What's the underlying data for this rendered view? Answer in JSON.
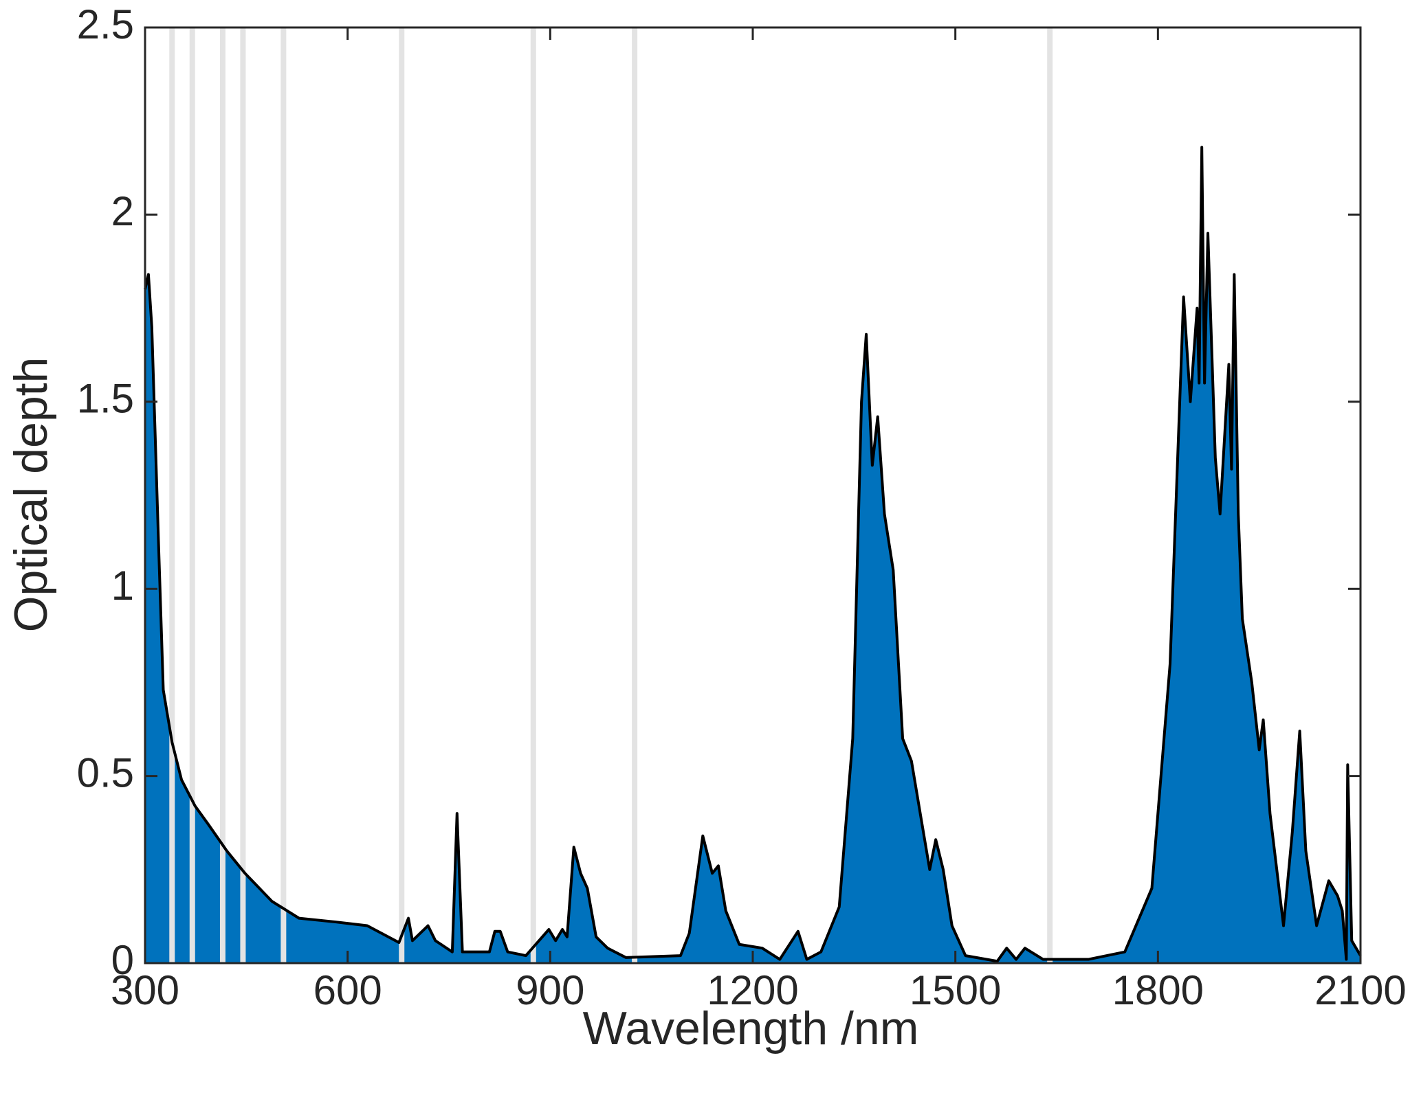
{
  "chart_data": {
    "type": "area",
    "xlabel": "Wavelength /nm",
    "ylabel": "Optical depth",
    "x": [
      300,
      305,
      310,
      320,
      327,
      340,
      354,
      374,
      394,
      421,
      448,
      488,
      528,
      582,
      629,
      676,
      690,
      696,
      719,
      730,
      755,
      762,
      770,
      810,
      818,
      826,
      837,
      864,
      898,
      908,
      918,
      925,
      935,
      945,
      955,
      968,
      985,
      1012,
      1093,
      1106,
      1126,
      1140,
      1149,
      1160,
      1180,
      1214,
      1240,
      1267,
      1280,
      1301,
      1328,
      1348,
      1361,
      1368,
      1377,
      1385,
      1395,
      1408,
      1422,
      1435,
      1448,
      1462,
      1471,
      1482,
      1495,
      1515,
      1562,
      1576,
      1590,
      1603,
      1630,
      1697,
      1751,
      1791,
      1818,
      1838,
      1848,
      1858,
      1861,
      1865,
      1869,
      1874,
      1885,
      1892,
      1905,
      1909,
      1913,
      1919,
      1925,
      1939,
      1950,
      1956,
      1966,
      1986,
      1999,
      2010,
      2019,
      2035,
      2053,
      2066,
      2073,
      2079,
      2081,
      2087,
      2100
    ],
    "values": [
      1.8,
      1.84,
      1.7,
      1.12,
      0.73,
      0.59,
      0.49,
      0.42,
      0.37,
      0.3,
      0.24,
      0.165,
      0.12,
      0.11,
      0.1,
      0.055,
      0.12,
      0.06,
      0.1,
      0.06,
      0.03,
      0.4,
      0.03,
      0.03,
      0.085,
      0.085,
      0.03,
      0.02,
      0.09,
      0.06,
      0.09,
      0.07,
      0.31,
      0.24,
      0.2,
      0.07,
      0.04,
      0.015,
      0.02,
      0.08,
      0.34,
      0.24,
      0.26,
      0.14,
      0.05,
      0.04,
      0.01,
      0.085,
      0.01,
      0.03,
      0.15,
      0.6,
      1.5,
      1.68,
      1.33,
      1.46,
      1.2,
      1.05,
      0.6,
      0.54,
      0.4,
      0.25,
      0.33,
      0.25,
      0.1,
      0.02,
      0.005,
      0.04,
      0.01,
      0.04,
      0.01,
      0.01,
      0.03,
      0.2,
      0.8,
      1.78,
      1.5,
      1.75,
      1.55,
      2.18,
      1.55,
      1.95,
      1.35,
      1.2,
      1.6,
      1.32,
      1.84,
      1.2,
      0.92,
      0.75,
      0.57,
      0.65,
      0.4,
      0.1,
      0.35,
      0.62,
      0.3,
      0.1,
      0.22,
      0.18,
      0.14,
      0.01,
      0.53,
      0.06,
      0.02
    ],
    "color": "#0072bd",
    "line_color": "#000000",
    "reference_lines": [
      340,
      370,
      415,
      445,
      505,
      680,
      875,
      1025,
      1640
    ],
    "reference_color": "#e3e3e3",
    "xlim": [
      300,
      2100
    ],
    "xticks": [
      300,
      600,
      900,
      1200,
      1500,
      1800,
      2100
    ],
    "ylim": [
      0,
      2.5
    ],
    "yticks": [
      0,
      0.5,
      1,
      1.5,
      2,
      2.5
    ],
    "grid": false
  }
}
